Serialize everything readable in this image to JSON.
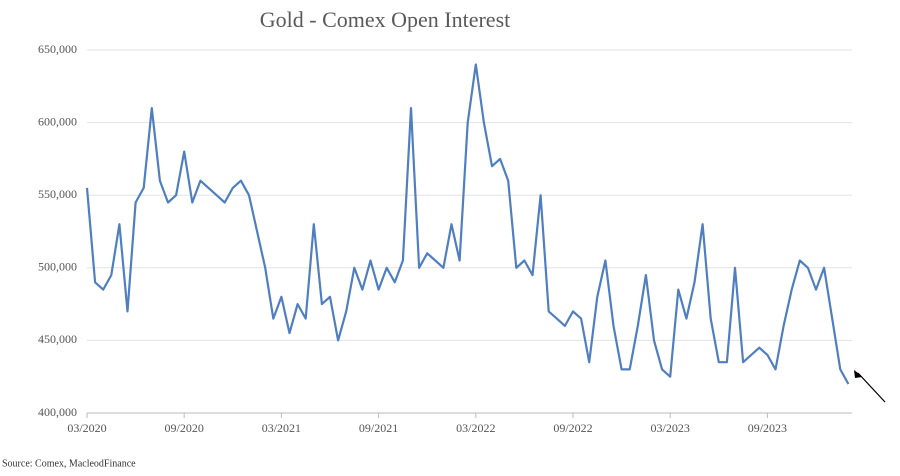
{
  "chart_data": {
    "type": "line",
    "title": "Gold - Comex Open Interest",
    "source": "Source: Comex, MacleodFinance",
    "categories": [
      "03/2020",
      null,
      null,
      null,
      null,
      null,
      null,
      null,
      null,
      null,
      null,
      null,
      "09/2020",
      null,
      null,
      null,
      null,
      null,
      null,
      null,
      null,
      null,
      null,
      null,
      "03/2021",
      null,
      null,
      null,
      null,
      null,
      null,
      null,
      null,
      null,
      null,
      null,
      "09/2021",
      null,
      null,
      null,
      null,
      null,
      null,
      null,
      null,
      null,
      null,
      null,
      "03/2022",
      null,
      null,
      null,
      null,
      null,
      null,
      null,
      null,
      null,
      null,
      null,
      "09/2022",
      null,
      null,
      null,
      null,
      null,
      null,
      null,
      null,
      null,
      null,
      null,
      "03/2023",
      null,
      null,
      null,
      null,
      null,
      null,
      null,
      null,
      null,
      null,
      null,
      "09/2023",
      null,
      null,
      null,
      null,
      null,
      null,
      null,
      null,
      null,
      null
    ],
    "series": [
      {
        "name": "Open Interest",
        "color": "#4f7fc0",
        "values": [
          555000,
          490000,
          485000,
          495000,
          530000,
          470000,
          545000,
          555000,
          610000,
          560000,
          545000,
          550000,
          580000,
          545000,
          560000,
          555000,
          550000,
          545000,
          555000,
          560000,
          550000,
          525000,
          500000,
          465000,
          480000,
          455000,
          475000,
          465000,
          530000,
          475000,
          480000,
          450000,
          470000,
          500000,
          485000,
          505000,
          485000,
          500000,
          490000,
          505000,
          610000,
          500000,
          510000,
          505000,
          500000,
          530000,
          505000,
          600000,
          640000,
          600000,
          570000,
          575000,
          560000,
          500000,
          505000,
          495000,
          550000,
          470000,
          465000,
          460000,
          470000,
          465000,
          435000,
          480000,
          505000,
          460000,
          430000,
          430000,
          460000,
          495000,
          450000,
          430000,
          425000,
          485000,
          465000,
          490000,
          530000,
          465000,
          435000,
          435000,
          500000,
          435000,
          440000,
          445000,
          440000,
          430000,
          460000,
          485000,
          505000,
          500000,
          485000,
          500000,
          465000,
          430000,
          420000
        ]
      }
    ],
    "ylim": [
      400000,
      650000
    ],
    "yticks": [
      {
        "value": 400000,
        "label": "400,000"
      },
      {
        "value": 450000,
        "label": "450,000"
      },
      {
        "value": 500000,
        "label": "500,000"
      },
      {
        "value": 550000,
        "label": "550,000"
      },
      {
        "value": 600000,
        "label": "600,000"
      },
      {
        "value": 650000,
        "label": "650,000"
      }
    ],
    "grid": true
  }
}
